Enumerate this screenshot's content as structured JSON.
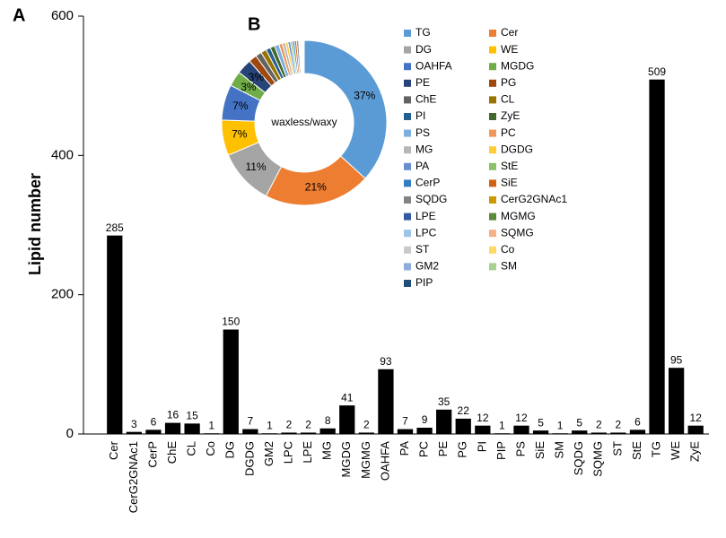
{
  "chart_data": [
    {
      "type": "bar",
      "panel": "A",
      "y_label": "Lipid number",
      "categories": [
        "Cer",
        "CerG2GNAc1",
        "CerP",
        "ChE",
        "CL",
        "Co",
        "DG",
        "DGDG",
        "GM2",
        "LPC",
        "LPE",
        "MG",
        "MGDG",
        "MGMG",
        "OAHFA",
        "PA",
        "PC",
        "PE",
        "PG",
        "PI",
        "PIP",
        "PS",
        "SiE",
        "SM",
        "SQDG",
        "SQMG",
        "ST",
        "StE",
        "TG",
        "WE",
        "ZyE"
      ],
      "values": [
        285,
        3,
        6,
        16,
        15,
        1,
        150,
        7,
        1,
        2,
        2,
        8,
        41,
        2,
        93,
        7,
        9,
        35,
        22,
        12,
        1,
        12,
        5,
        1,
        5,
        2,
        2,
        6,
        509,
        95,
        12
      ],
      "color": "#000000",
      "ylim": [
        0,
        600
      ],
      "yticks": [
        0,
        200,
        400,
        600
      ],
      "grid": false
    },
    {
      "type": "pie",
      "panel": "B",
      "center_label": "waxless/waxy",
      "donut": true,
      "legend": "right",
      "series": [
        {
          "name": "TG",
          "color": "#5b9bd5",
          "value": 37,
          "value_label": "37%"
        },
        {
          "name": "Cer",
          "color": "#ed7d31",
          "value": 21,
          "value_label": "21%"
        },
        {
          "name": "DG",
          "color": "#a5a5a5",
          "value": 11,
          "value_label": "11%"
        },
        {
          "name": "WE",
          "color": "#ffc000",
          "value": 7,
          "value_label": "7%"
        },
        {
          "name": "OAHFA",
          "color": "#4472c4",
          "value": 7,
          "value_label": "7%"
        },
        {
          "name": "MGDG",
          "color": "#70ad47",
          "value": 3,
          "value_label": "3%"
        },
        {
          "name": "PE",
          "color": "#264478",
          "value": 3,
          "value_label": "3%"
        },
        {
          "name": "PG",
          "color": "#9e480e",
          "value": 1.6
        },
        {
          "name": "ChE",
          "color": "#636363",
          "value": 1.2
        },
        {
          "name": "CL",
          "color": "#997300",
          "value": 1.1
        },
        {
          "name": "PI",
          "color": "#255e91",
          "value": 0.9
        },
        {
          "name": "ZyE",
          "color": "#43682b",
          "value": 0.9
        },
        {
          "name": "PS",
          "color": "#7cafdd",
          "value": 0.9
        },
        {
          "name": "PC",
          "color": "#f1975a",
          "value": 0.7
        },
        {
          "name": "MG",
          "color": "#b7b7b7",
          "value": 0.6
        },
        {
          "name": "DGDG",
          "color": "#ffcd33",
          "value": 0.5
        },
        {
          "name": "PA",
          "color": "#698ed0",
          "value": 0.5
        },
        {
          "name": "StE",
          "color": "#8cc168",
          "value": 0.4
        },
        {
          "name": "CerP",
          "color": "#327dc2",
          "value": 0.4
        },
        {
          "name": "SiE",
          "color": "#d26012",
          "value": 0.4
        },
        {
          "name": "SQDG",
          "color": "#848484",
          "value": 0.4
        },
        {
          "name": "CerG2GNAc1",
          "color": "#cc9a00",
          "value": 0.2
        },
        {
          "name": "LPE",
          "color": "#335aa1",
          "value": 0.1
        },
        {
          "name": "MGMG",
          "color": "#5a8a39",
          "value": 0.1
        },
        {
          "name": "LPC",
          "color": "#9dc3e6",
          "value": 0.1
        },
        {
          "name": "SQMG",
          "color": "#f4b183",
          "value": 0.1
        },
        {
          "name": "ST",
          "color": "#c9c9c9",
          "value": 0.1
        },
        {
          "name": "Co",
          "color": "#ffd966",
          "value": 0.1
        },
        {
          "name": "GM2",
          "color": "#8faadc",
          "value": 0.1
        },
        {
          "name": "SM",
          "color": "#a9d18e",
          "value": 0.1
        },
        {
          "name": "PIP",
          "color": "#1f4e79",
          "value": 0.1
        }
      ]
    }
  ]
}
